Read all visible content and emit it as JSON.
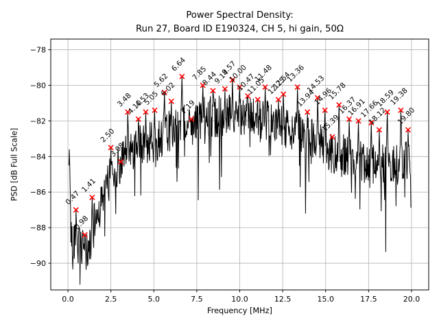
{
  "chart_data": {
    "type": "line",
    "title_line1": "Power Spectral Density:",
    "title_line2": "Run 27, Board ID E190324, CH 5, hi gain, 50Ω",
    "xlabel": "Frequency [MHz]",
    "ylabel": "PSD [dB Full Scale]",
    "xlim": [
      -1.0,
      21.0
    ],
    "ylim": [
      -91.5,
      -77.4
    ],
    "xticks": [
      0.0,
      2.5,
      5.0,
      7.5,
      10.0,
      12.5,
      15.0,
      17.5,
      20.0
    ],
    "xtick_labels": [
      "0.0",
      "2.5",
      "5.0",
      "7.5",
      "10.0",
      "12.5",
      "15.0",
      "17.5",
      "20.0"
    ],
    "yticks": [
      -78,
      -80,
      -82,
      -84,
      -86,
      -88,
      -90
    ],
    "ytick_labels": [
      "−78",
      "−80",
      "−82",
      "−84",
      "−86",
      "−88",
      "−90"
    ],
    "grid": true,
    "grid_color": "#b0b0b0",
    "line_color": "#000000",
    "marker_symbol": "x",
    "marker_color": "#ff0000",
    "annotation_rotation_deg": 45,
    "peaks": [
      {
        "freq": 0.47,
        "psd": -87.0,
        "label": "0.47"
      },
      {
        "freq": 0.98,
        "psd": -88.4,
        "label": "0.98"
      },
      {
        "freq": 1.41,
        "psd": -86.3,
        "label": "1.41"
      },
      {
        "freq": 2.5,
        "psd": -83.5,
        "label": "2.50"
      },
      {
        "freq": 3.08,
        "psd": -84.3,
        "label": "3.08"
      },
      {
        "freq": 3.48,
        "psd": -81.5,
        "label": "3.48"
      },
      {
        "freq": 4.1,
        "psd": -81.9,
        "label": "4.10"
      },
      {
        "freq": 4.53,
        "psd": -81.5,
        "label": "4.53"
      },
      {
        "freq": 5.05,
        "psd": -81.4,
        "label": "5.05"
      },
      {
        "freq": 5.62,
        "psd": -80.4,
        "label": "5.62"
      },
      {
        "freq": 6.02,
        "psd": -80.9,
        "label": "6.02"
      },
      {
        "freq": 6.64,
        "psd": -79.5,
        "label": "6.64"
      },
      {
        "freq": 7.19,
        "psd": -81.9,
        "label": "7.19"
      },
      {
        "freq": 7.85,
        "psd": -80.0,
        "label": "7.85"
      },
      {
        "freq": 8.44,
        "psd": -80.3,
        "label": "8.44"
      },
      {
        "freq": 9.14,
        "psd": -80.2,
        "label": "9.14"
      },
      {
        "freq": 9.57,
        "psd": -79.7,
        "label": "9.57"
      },
      {
        "freq": 10.0,
        "psd": -80.1,
        "label": "10.00"
      },
      {
        "freq": 10.47,
        "psd": -80.6,
        "label": "10.47"
      },
      {
        "freq": 11.05,
        "psd": -80.8,
        "label": "11.05"
      },
      {
        "freq": 11.48,
        "psd": -80.1,
        "label": "11.48"
      },
      {
        "freq": 12.25,
        "psd": -80.8,
        "label": "12.25"
      },
      {
        "freq": 12.54,
        "psd": -80.5,
        "label": "12.54"
      },
      {
        "freq": 13.36,
        "psd": -80.1,
        "label": "13.36"
      },
      {
        "freq": 13.94,
        "psd": -81.5,
        "label": "13.94"
      },
      {
        "freq": 14.53,
        "psd": -80.7,
        "label": "14.53"
      },
      {
        "freq": 14.96,
        "psd": -81.4,
        "label": "14.96"
      },
      {
        "freq": 15.39,
        "psd": -82.9,
        "label": "15.39"
      },
      {
        "freq": 15.78,
        "psd": -81.1,
        "label": "15.78"
      },
      {
        "freq": 16.37,
        "psd": -81.9,
        "label": "16.37"
      },
      {
        "freq": 16.91,
        "psd": -82.0,
        "label": "16.91"
      },
      {
        "freq": 17.66,
        "psd": -82.1,
        "label": "17.66"
      },
      {
        "freq": 18.12,
        "psd": -82.5,
        "label": "18.12"
      },
      {
        "freq": 18.59,
        "psd": -81.5,
        "label": "18.59"
      },
      {
        "freq": 19.38,
        "psd": -81.4,
        "label": "19.38"
      },
      {
        "freq": 19.8,
        "psd": -82.5,
        "label": "19.80"
      }
    ],
    "left_spike": {
      "freq": 0.08,
      "psd": -83.6
    },
    "noise_floor_anchors": [
      [
        0.06,
        -88.0
      ],
      [
        0.3,
        -88.5
      ],
      [
        0.6,
        -89.0
      ],
      [
        1.0,
        -89.5
      ],
      [
        1.3,
        -89.0
      ],
      [
        1.6,
        -87.5
      ],
      [
        2.0,
        -86.5
      ],
      [
        2.5,
        -85.0
      ],
      [
        3.0,
        -84.5
      ],
      [
        3.5,
        -83.8
      ],
      [
        4.0,
        -83.5
      ],
      [
        4.5,
        -83.3
      ],
      [
        5.0,
        -83.2
      ],
      [
        5.5,
        -82.8
      ],
      [
        6.0,
        -82.5
      ],
      [
        6.5,
        -82.2
      ],
      [
        7.0,
        -82.3
      ],
      [
        7.5,
        -82.2
      ],
      [
        8.0,
        -81.8
      ],
      [
        8.5,
        -81.7
      ],
      [
        9.0,
        -81.8
      ],
      [
        9.5,
        -81.5
      ],
      [
        10.0,
        -81.6
      ],
      [
        10.5,
        -81.8
      ],
      [
        11.0,
        -82.0
      ],
      [
        11.5,
        -82.0
      ],
      [
        12.0,
        -82.3
      ],
      [
        12.5,
        -82.3
      ],
      [
        13.0,
        -82.5
      ],
      [
        13.5,
        -82.6
      ],
      [
        14.0,
        -83.0
      ],
      [
        14.5,
        -83.2
      ],
      [
        15.0,
        -83.5
      ],
      [
        15.5,
        -84.0
      ],
      [
        16.0,
        -83.8
      ],
      [
        16.5,
        -84.0
      ],
      [
        17.0,
        -84.2
      ],
      [
        17.5,
        -84.3
      ],
      [
        18.0,
        -84.5
      ],
      [
        18.5,
        -84.3
      ],
      [
        19.0,
        -84.5
      ],
      [
        19.5,
        -84.5
      ],
      [
        20.0,
        -84.0
      ]
    ],
    "noise": {
      "seed": 42,
      "jitter_db": 1.2,
      "dip_prob": 0.07,
      "dip_base": 0.8,
      "dip_extra": 3.2,
      "points": 900,
      "fmin": 0.06,
      "fmax": 19.96,
      "floor_clip": -91.2
    }
  }
}
